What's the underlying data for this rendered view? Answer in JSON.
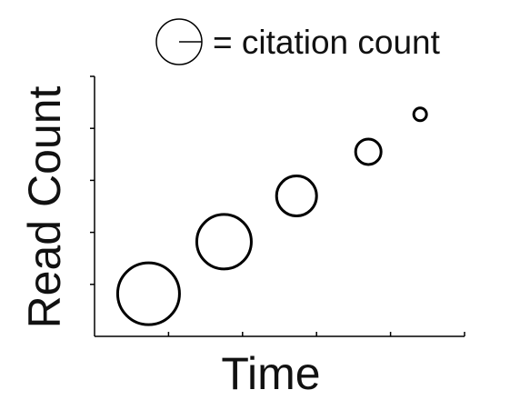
{
  "chart_data": {
    "type": "scatter",
    "encoding": "bubble",
    "xlabel": "Time",
    "ylabel": "Read Count",
    "xlim": [
      0,
      5
    ],
    "ylim": [
      0,
      5
    ],
    "x_ticks": [
      1,
      2,
      3,
      4
    ],
    "y_ticks": [
      1,
      2,
      3,
      4
    ],
    "show_tick_labels": false,
    "grid": false,
    "legend": {
      "position": "top-right",
      "label": "= citation count"
    },
    "series": [
      {
        "points": [
          {
            "x": 0.73,
            "y": 0.82,
            "size": 34
          },
          {
            "x": 1.75,
            "y": 1.82,
            "size": 30
          },
          {
            "x": 2.73,
            "y": 2.7,
            "size": 22
          },
          {
            "x": 3.7,
            "y": 3.55,
            "size": 14
          },
          {
            "x": 4.4,
            "y": 4.27,
            "size": 7
          }
        ]
      }
    ]
  },
  "colors": {
    "stroke": "#000000",
    "text": "#111111",
    "background": "#ffffff"
  },
  "icons": {
    "legend_symbol": "circle-with-radius-icon"
  }
}
